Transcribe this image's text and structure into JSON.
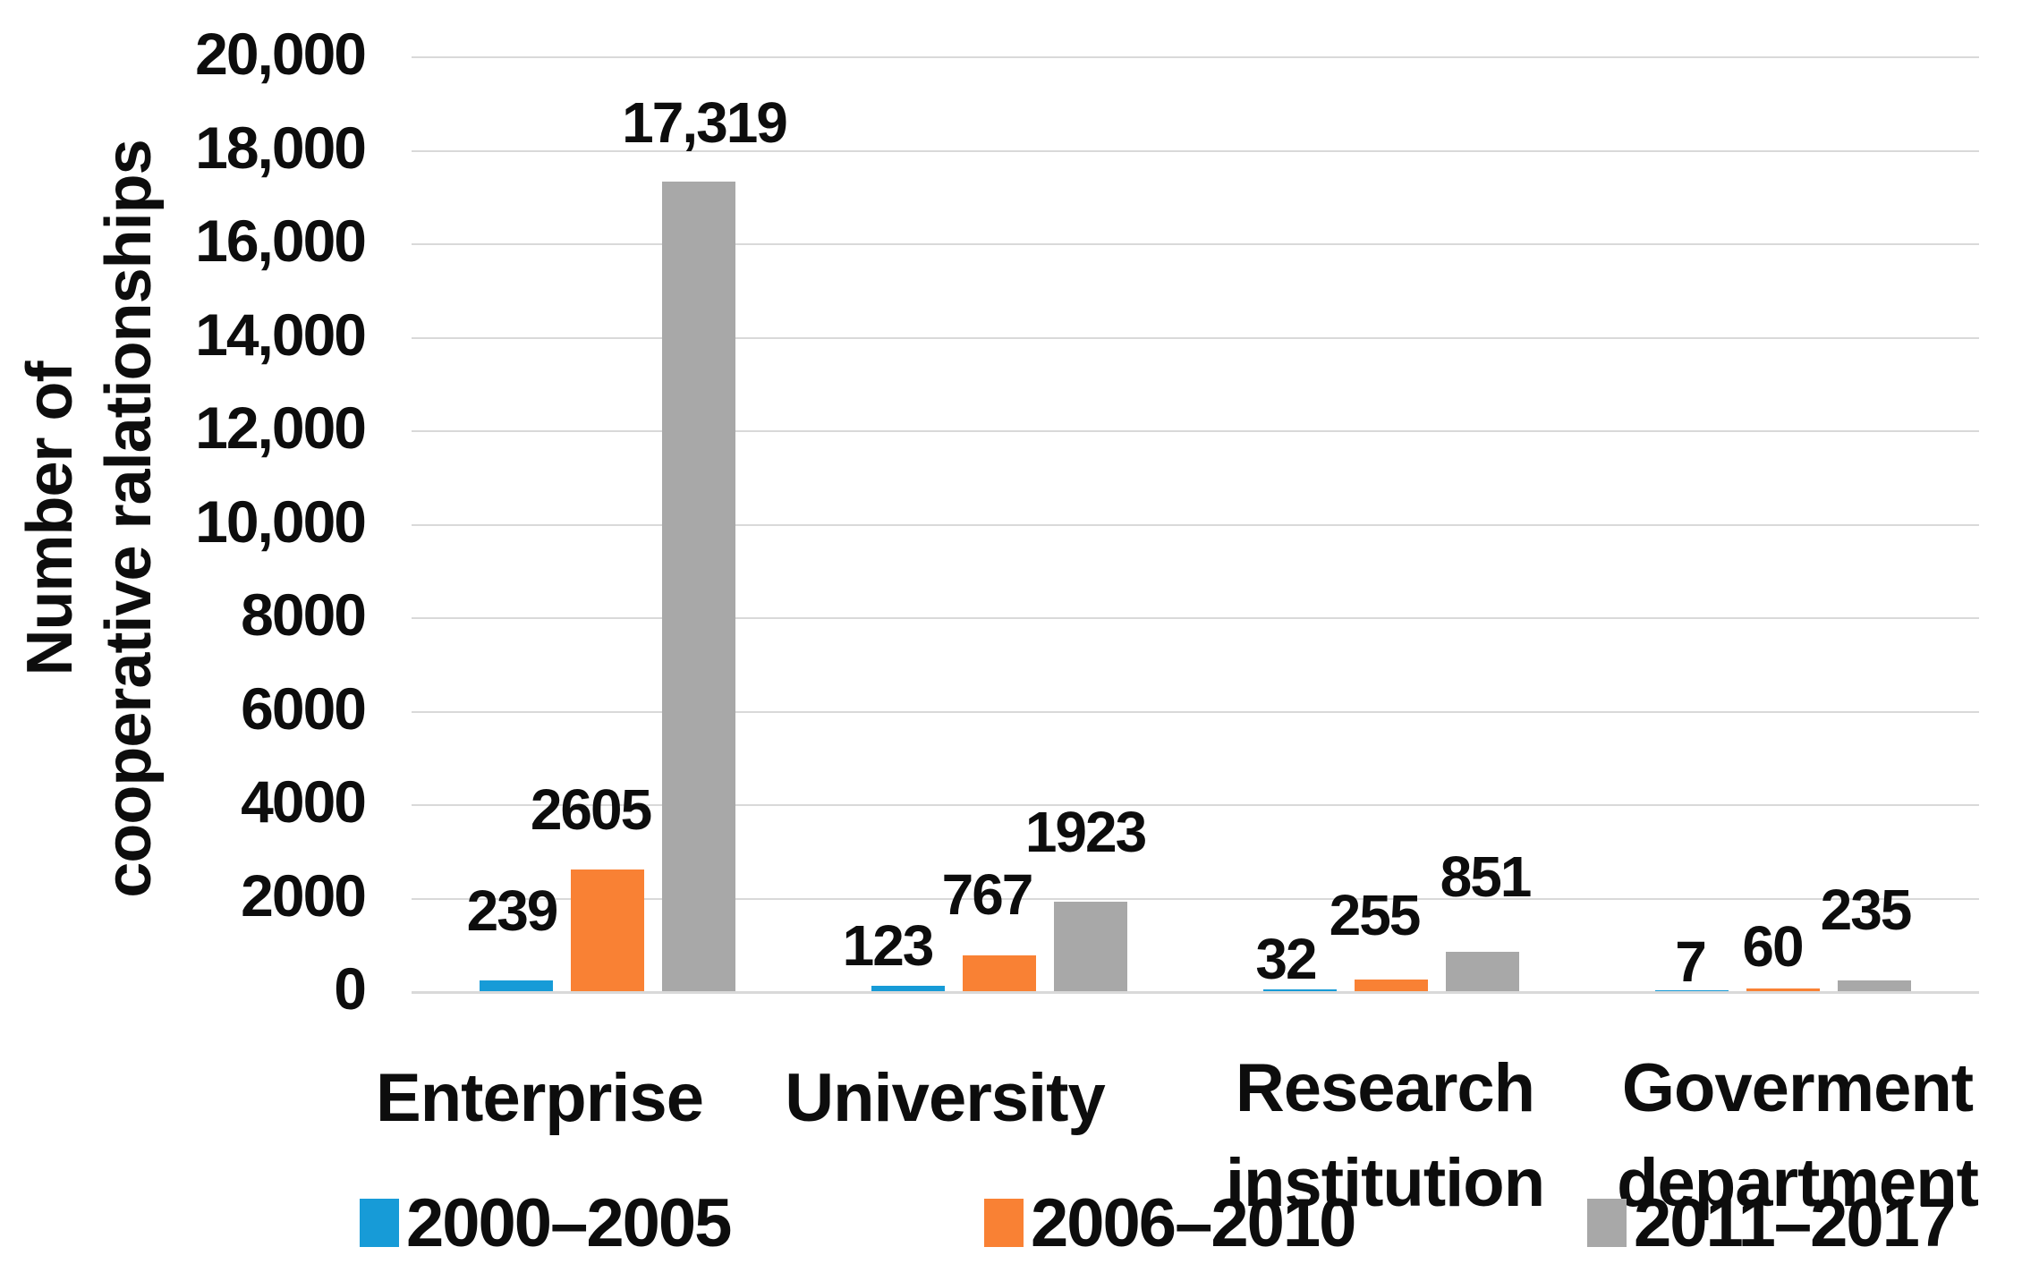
{
  "chart_data": {
    "type": "bar",
    "title": "",
    "y_axis_title_lines": [
      "Number of",
      "cooperative ralationships"
    ],
    "categories": [
      "Enterprise",
      "University",
      "Research institution",
      "Goverment department"
    ],
    "category_label_lines": [
      [
        "Enterprise"
      ],
      [
        "University"
      ],
      [
        "Research",
        "institution"
      ],
      [
        "Goverment",
        "department"
      ]
    ],
    "series": [
      {
        "name": "2000–2005",
        "color": "#179BD7",
        "values": [
          239,
          123,
          32,
          7
        ],
        "value_labels": [
          "239",
          "123",
          "32",
          "7"
        ]
      },
      {
        "name": "2006–2010",
        "color": "#F98134",
        "values": [
          2605,
          767,
          255,
          60
        ],
        "value_labels": [
          "2605",
          "767",
          "255",
          "60"
        ]
      },
      {
        "name": "2011–2017",
        "color": "#A8A8A8",
        "values": [
          17319,
          1923,
          851,
          235
        ],
        "value_labels": [
          "17,319",
          "1923",
          "851",
          "235"
        ]
      }
    ],
    "ylim": [
      0,
      20000
    ],
    "y_ticks": [
      {
        "value": 0,
        "label": "0"
      },
      {
        "value": 2000,
        "label": "2000"
      },
      {
        "value": 4000,
        "label": "4000"
      },
      {
        "value": 6000,
        "label": "6000"
      },
      {
        "value": 8000,
        "label": "8000"
      },
      {
        "value": 10000,
        "label": "10,000"
      },
      {
        "value": 12000,
        "label": "12,000"
      },
      {
        "value": 14000,
        "label": "14,000"
      },
      {
        "value": 16000,
        "label": "16,000"
      },
      {
        "value": 18000,
        "label": "18,000"
      },
      {
        "value": 20000,
        "label": "20,000"
      }
    ],
    "grid": true,
    "legend_position": "bottom",
    "gridline_color": "#D9D9D9",
    "text_color": "#0D0D0D",
    "background": "#FFFFFF"
  }
}
